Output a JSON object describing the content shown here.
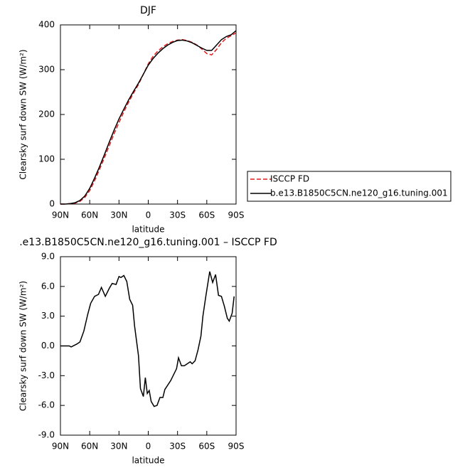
{
  "chart_data": [
    {
      "type": "line",
      "title": "DJF",
      "xlabel": "latitude",
      "ylabel": "Clearsky surf down SW (W/m²)",
      "xlim": [
        90,
        -90
      ],
      "xticks": [
        {
          "value": 90,
          "label": "90N"
        },
        {
          "value": 60,
          "label": "60N"
        },
        {
          "value": 30,
          "label": "30N"
        },
        0,
        {
          "value": -30,
          "label": "30S"
        },
        {
          "value": -60,
          "label": "60S"
        },
        {
          "value": -90,
          "label": "90S"
        }
      ],
      "ylim": [
        0,
        400
      ],
      "yticks": [
        0,
        100,
        200,
        300,
        400
      ],
      "legend": "outside-right",
      "x": [
        90,
        85,
        80,
        75,
        70,
        65,
        60,
        55,
        50,
        45,
        40,
        35,
        30,
        25,
        20,
        15,
        10,
        5,
        0,
        -5,
        -10,
        -15,
        -20,
        -25,
        -30,
        -35,
        -40,
        -45,
        -50,
        -55,
        -60,
        -65,
        -70,
        -75,
        -80,
        -85,
        -90
      ],
      "series": [
        {
          "name": "ISCCP FD",
          "color": "#e41a1c",
          "dash": true,
          "values": [
            0,
            0,
            1,
            2,
            6,
            15,
            30,
            52,
            77,
            103,
            130,
            157,
            182,
            206,
            228,
            248,
            267,
            290,
            313,
            330,
            342,
            351,
            358,
            363,
            366,
            367,
            365,
            361,
            355,
            346,
            336,
            333,
            345,
            360,
            370,
            376,
            382
          ]
        },
        {
          "name": "b.e13.B1850C5CN.ne120_g16.tuning.001",
          "color": "#000000",
          "dash": false,
          "values": [
            0,
            0,
            1,
            3,
            8,
            18,
            35,
            58,
            83,
            110,
            138,
            165,
            190,
            212,
            233,
            252,
            270,
            290,
            310,
            325,
            337,
            347,
            355,
            361,
            365,
            366,
            364,
            360,
            354,
            348,
            343,
            343,
            355,
            367,
            374,
            378,
            387
          ]
        }
      ]
    },
    {
      "type": "line",
      "title": ".e13.B1850C5CN.ne120_g16.tuning.001 – ISCCP FD",
      "xlabel": "latitude",
      "ylabel": "Clearsky surf down SW (W/m²)",
      "xlim": [
        90,
        -90
      ],
      "xticks": [
        {
          "value": 90,
          "label": "90N"
        },
        {
          "value": 60,
          "label": "60N"
        },
        {
          "value": 30,
          "label": "30N"
        },
        0,
        {
          "value": -30,
          "label": "30S"
        },
        {
          "value": -60,
          "label": "60S"
        },
        {
          "value": -90,
          "label": "90S"
        }
      ],
      "ylim": [
        -9,
        9
      ],
      "yticks": [
        {
          "value": -9,
          "label": "-9.0"
        },
        {
          "value": -6,
          "label": "-6.0"
        },
        {
          "value": -3,
          "label": "-3.0"
        },
        {
          "value": 0,
          "label": "0.0"
        },
        {
          "value": 3,
          "label": "3.0"
        },
        {
          "value": 6,
          "label": "6.0"
        },
        {
          "value": 9,
          "label": "9.0"
        }
      ],
      "x": [
        90,
        81,
        79,
        73,
        70,
        66,
        62,
        59,
        55,
        51,
        48,
        44,
        40,
        37,
        33,
        30,
        28,
        25,
        22,
        19,
        16,
        14,
        10,
        8,
        5,
        3,
        1,
        -1,
        -3,
        -6,
        -9,
        -12,
        -15,
        -17,
        -23,
        -26,
        -29,
        -31,
        -34,
        -37,
        -40,
        -43,
        -45,
        -48,
        -51,
        -54,
        -56,
        -59,
        -63,
        -66,
        -69,
        -72,
        -75,
        -78,
        -81,
        -83,
        -86,
        -88
      ],
      "color": "#000000",
      "values": [
        0,
        0,
        -0.1,
        0.2,
        0.4,
        1.5,
        3.2,
        4.3,
        5,
        5.2,
        5.9,
        5,
        5.8,
        6.3,
        6.2,
        7,
        6.9,
        7.1,
        6.5,
        4.7,
        4.1,
        2,
        -1,
        -4.3,
        -5.1,
        -3.2,
        -4.8,
        -4.5,
        -5.6,
        -6.1,
        -6,
        -5.2,
        -5.2,
        -4.4,
        -3.5,
        -2.9,
        -2.3,
        -1.2,
        -2,
        -2,
        -1.8,
        -1.6,
        -1.8,
        -1.5,
        -0.4,
        1,
        3,
        5,
        7.5,
        6.4,
        7.2,
        5.1,
        5,
        4,
        2.8,
        2.5,
        3.3,
        5
      ]
    }
  ]
}
